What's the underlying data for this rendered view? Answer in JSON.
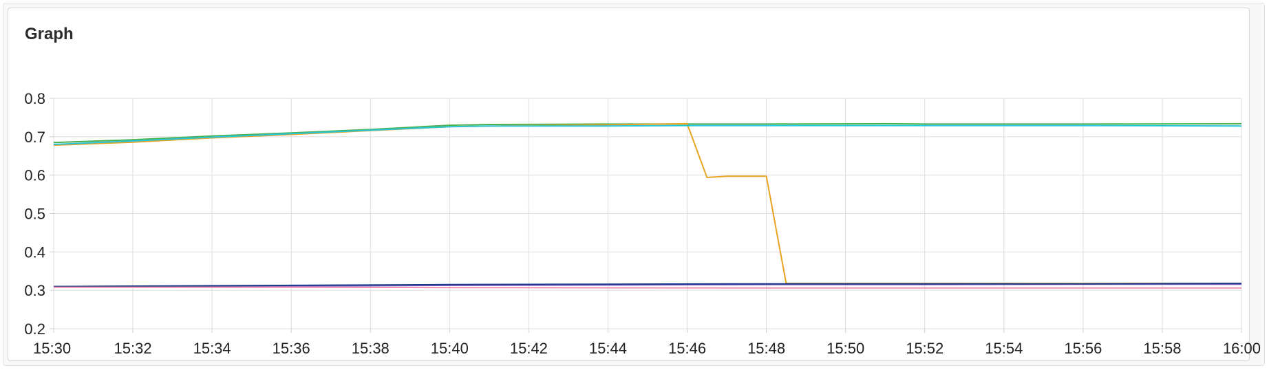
{
  "panel": {
    "title": "Graph"
  },
  "chart_data": {
    "type": "line",
    "title": "Graph",
    "xlabel": "",
    "ylabel": "",
    "xlim": [
      "15:30",
      "16:00"
    ],
    "ylim": [
      0.2,
      0.8
    ],
    "x_ticks": [
      "15:30",
      "15:32",
      "15:34",
      "15:36",
      "15:38",
      "15:40",
      "15:42",
      "15:44",
      "15:46",
      "15:48",
      "15:50",
      "15:52",
      "15:54",
      "15:56",
      "15:58",
      "16:00"
    ],
    "y_ticks": [
      "0.2",
      "0.3",
      "0.4",
      "0.5",
      "0.6",
      "0.7",
      "0.8"
    ],
    "grid": true,
    "legend": "none",
    "series": [
      {
        "color": "#4caf50",
        "points": [
          [
            "15:30",
            0.685
          ],
          [
            "15:32",
            0.692
          ],
          [
            "15:34",
            0.702
          ],
          [
            "15:36",
            0.71
          ],
          [
            "15:38",
            0.719
          ],
          [
            "15:40",
            0.73
          ],
          [
            "15:41",
            0.732
          ],
          [
            "15:44",
            0.733
          ],
          [
            "15:46",
            0.733
          ],
          [
            "15:48",
            0.733
          ],
          [
            "15:51",
            0.734
          ],
          [
            "15:52",
            0.733
          ],
          [
            "15:56",
            0.733
          ],
          [
            "16:00",
            0.734
          ]
        ]
      },
      {
        "color": "#e8a321",
        "points": [
          [
            "15:30",
            0.678
          ],
          [
            "15:32",
            0.686
          ],
          [
            "15:34",
            0.697
          ],
          [
            "15:36",
            0.706
          ],
          [
            "15:38",
            0.716
          ],
          [
            "15:40",
            0.726
          ],
          [
            "15:42",
            0.729
          ],
          [
            "15:44",
            0.731
          ],
          [
            "15:46",
            0.734
          ],
          [
            "15:46.5",
            0.594
          ],
          [
            "15:47",
            0.597
          ],
          [
            "15:48",
            0.597
          ],
          [
            "15:48.5",
            0.318
          ],
          [
            "15:50",
            0.318
          ],
          [
            "15:54",
            0.318
          ],
          [
            "16:00",
            0.318
          ]
        ]
      },
      {
        "color": "#26c6da",
        "points": [
          [
            "15:30",
            0.68
          ],
          [
            "15:32",
            0.689
          ],
          [
            "15:34",
            0.699
          ],
          [
            "15:36",
            0.708
          ],
          [
            "15:38",
            0.717
          ],
          [
            "15:40",
            0.726
          ],
          [
            "15:41",
            0.728
          ],
          [
            "15:44",
            0.728
          ],
          [
            "15:46",
            0.729
          ],
          [
            "15:48",
            0.729
          ],
          [
            "15:52",
            0.729
          ],
          [
            "15:56",
            0.729
          ],
          [
            "16:00",
            0.728
          ]
        ]
      },
      {
        "color": "#7e57c2",
        "points": [
          [
            "15:30",
            0.31
          ],
          [
            "15:34",
            0.311
          ],
          [
            "15:38",
            0.312
          ],
          [
            "15:40",
            0.313
          ],
          [
            "15:44",
            0.314
          ],
          [
            "15:48",
            0.315
          ],
          [
            "15:52",
            0.315
          ],
          [
            "15:56",
            0.316
          ],
          [
            "16:00",
            0.316
          ]
        ]
      },
      {
        "color": "#1a3a8c",
        "points": [
          [
            "15:30",
            0.31
          ],
          [
            "15:34",
            0.312
          ],
          [
            "15:38",
            0.314
          ],
          [
            "15:40",
            0.315
          ],
          [
            "15:44",
            0.316
          ],
          [
            "15:48",
            0.317
          ],
          [
            "15:52",
            0.317
          ],
          [
            "15:56",
            0.317
          ],
          [
            "16:00",
            0.318
          ]
        ]
      },
      {
        "color": "#f48fb1",
        "points": [
          [
            "15:30",
            0.308
          ],
          [
            "15:36",
            0.308
          ],
          [
            "15:42",
            0.307
          ],
          [
            "15:48",
            0.306
          ],
          [
            "15:54",
            0.306
          ],
          [
            "16:00",
            0.306
          ]
        ]
      }
    ]
  }
}
